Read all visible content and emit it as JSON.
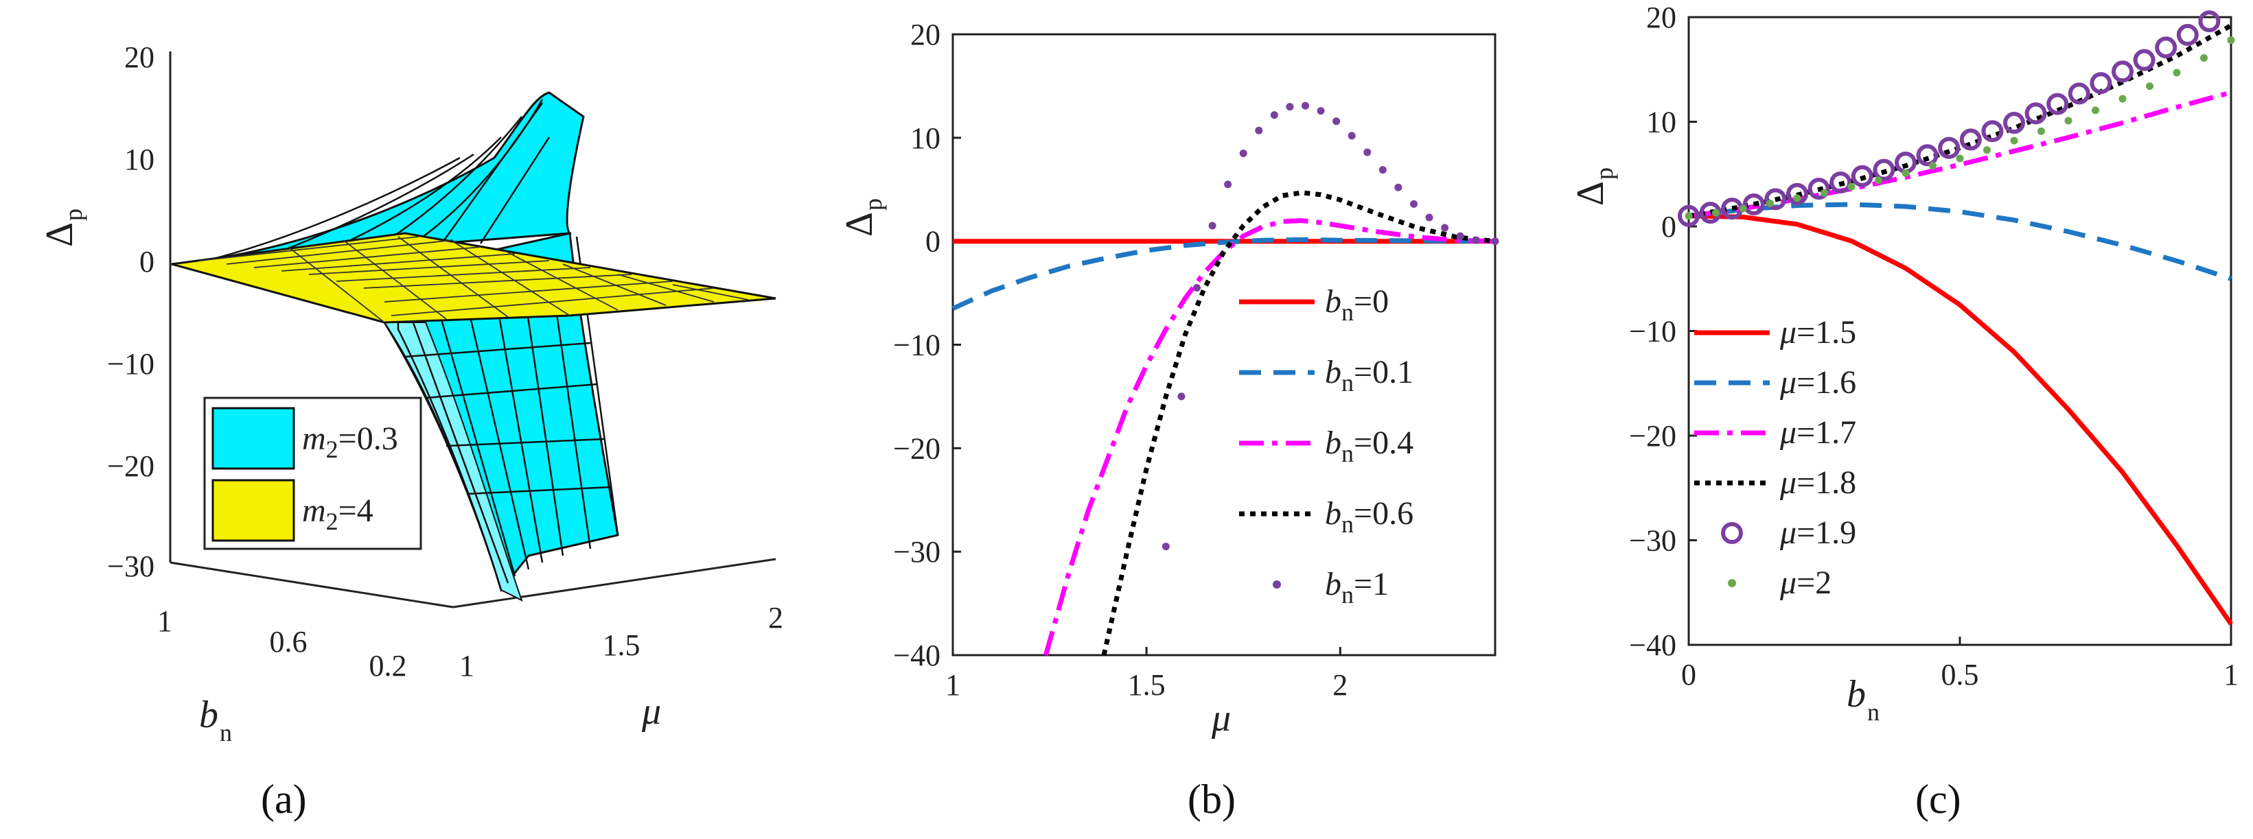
{
  "panels": [
    {
      "label": "(a)",
      "panel_label": "(a)",
      "legend_a": [
        {
          "name": "m2=0.3",
          "text_main": "m",
          "text_sub": "2",
          "text_rest": "=0.3",
          "color": "#00ffff"
        },
        {
          "name": "m2=4",
          "text_main": "m",
          "text_sub": "2",
          "text_rest": "=4",
          "color": "#ffff00"
        }
      ],
      "z_ticks": [
        "20",
        "10",
        "0",
        "−10",
        "−20",
        "−30"
      ],
      "bn_ticks": [
        "1",
        "0.6",
        "0.2"
      ],
      "mu_ticks": [
        "1",
        "1.5",
        "2"
      ],
      "zlabel": "Δ",
      "zlabel_sub": "p",
      "xlabel": "b",
      "xlabel_sub": "n",
      "ylabel": "μ"
    }
  ],
  "chart_data": [
    {
      "type": "surface",
      "title": "",
      "panel_label": "(a)",
      "zlabel": "Δp",
      "axes": {
        "b_n": [
          1,
          0.6,
          0.2
        ],
        "mu": [
          1,
          1.5,
          2
        ],
        "zlim": [
          -30,
          20
        ]
      },
      "series": [
        {
          "name": "m2=0.3",
          "color": "#00ffff"
        },
        {
          "name": "m2=4",
          "color": "#ffff00"
        }
      ]
    },
    {
      "type": "line",
      "panel_label": "(b)",
      "xlabel": "μ",
      "ylabel": "Δp",
      "xlim": [
        1,
        2.4
      ],
      "ylim": [
        -40,
        20
      ],
      "xticks": [
        1,
        1.5,
        2
      ],
      "yticks": [
        20,
        10,
        0,
        -10,
        -20,
        -30,
        -40
      ],
      "legend": "right",
      "series": [
        {
          "name": "bn=0",
          "label_main": "b",
          "label_sub": "n",
          "label_rest": "=0",
          "color": "#ff0000",
          "style": "solid",
          "x": [
            1,
            1.2,
            1.4,
            1.6,
            1.8,
            2.0,
            2.2,
            2.4
          ],
          "y": [
            0,
            0,
            0,
            0,
            0,
            0,
            0,
            0
          ]
        },
        {
          "name": "bn=0.1",
          "label_main": "b",
          "label_sub": "n",
          "label_rest": "=0.1",
          "color": "#1f77c4",
          "style": "dashed",
          "x": [
            1,
            1.1,
            1.2,
            1.3,
            1.4,
            1.5,
            1.6,
            1.7,
            1.8,
            1.9,
            2.0,
            2.2,
            2.4
          ],
          "y": [
            -6.5,
            -4.8,
            -3.5,
            -2.4,
            -1.6,
            -0.9,
            -0.4,
            -0.1,
            0.1,
            0.15,
            0.1,
            0.05,
            0
          ]
        },
        {
          "name": "bn=0.4",
          "label_main": "b",
          "label_sub": "n",
          "label_rest": "=0.4",
          "color": "#ff00ff",
          "style": "dashdot",
          "x": [
            1.24,
            1.3,
            1.35,
            1.4,
            1.45,
            1.5,
            1.55,
            1.6,
            1.65,
            1.7,
            1.75,
            1.8,
            1.85,
            1.9,
            1.95,
            2.0,
            2.1,
            2.2,
            2.3,
            2.4
          ],
          "y": [
            -40,
            -32,
            -26,
            -21,
            -16,
            -12,
            -8.5,
            -5.5,
            -3,
            -1,
            0.5,
            1.4,
            1.9,
            2.0,
            1.8,
            1.5,
            0.9,
            0.4,
            0.1,
            0
          ]
        },
        {
          "name": "bn=0.6",
          "label_main": "b",
          "label_sub": "n",
          "label_rest": "=0.6",
          "color": "#000000",
          "style": "dotted",
          "x": [
            1.39,
            1.45,
            1.5,
            1.55,
            1.6,
            1.65,
            1.7,
            1.75,
            1.8,
            1.85,
            1.9,
            1.95,
            2.0,
            2.1,
            2.2,
            2.3,
            2.4
          ],
          "y": [
            -40,
            -30,
            -22,
            -15,
            -9,
            -4.5,
            -1,
            1.5,
            3.3,
            4.4,
            4.7,
            4.5,
            4.0,
            2.6,
            1.3,
            0.4,
            0
          ]
        },
        {
          "name": "bn=1",
          "label_main": "b",
          "label_sub": "n",
          "label_rest": "=1",
          "color": "#7b3fa0",
          "style": "points",
          "x": [
            1.55,
            1.59,
            1.63,
            1.67,
            1.71,
            1.75,
            1.79,
            1.83,
            1.87,
            1.91,
            1.95,
            1.99,
            2.03,
            2.07,
            2.11,
            2.15,
            2.19,
            2.23,
            2.27,
            2.31,
            2.35,
            2.4
          ],
          "y": [
            -29.5,
            -15,
            -4.5,
            1.5,
            5.5,
            8.5,
            10.7,
            12.2,
            13.0,
            13.1,
            12.6,
            11.6,
            10.2,
            8.6,
            6.9,
            5.2,
            3.6,
            2.3,
            1.3,
            0.5,
            0.1,
            0
          ]
        }
      ]
    },
    {
      "type": "line",
      "panel_label": "(c)",
      "xlabel": "bn",
      "ylabel": "Δp",
      "xlim": [
        0,
        1
      ],
      "ylim": [
        -40,
        20
      ],
      "xticks": [
        0,
        0.5,
        1
      ],
      "yticks": [
        20,
        10,
        0,
        -10,
        -20,
        -30,
        -40
      ],
      "legend": "bottom-left",
      "series": [
        {
          "name": "μ=1.5",
          "label_main": "μ",
          "label_rest": "=1.5",
          "color": "#ff0000",
          "style": "solid",
          "x": [
            0,
            0.1,
            0.2,
            0.3,
            0.4,
            0.5,
            0.6,
            0.7,
            0.8,
            0.9,
            1.0
          ],
          "y": [
            1,
            0.9,
            0.2,
            -1.4,
            -4,
            -7.5,
            -12,
            -17.5,
            -23.5,
            -30.5,
            -38
          ]
        },
        {
          "name": "μ=1.6",
          "label_main": "μ",
          "label_rest": "=1.6",
          "color": "#1f77c4",
          "style": "dashed",
          "x": [
            0,
            0.1,
            0.2,
            0.3,
            0.4,
            0.5,
            0.6,
            0.7,
            0.8,
            0.9,
            1.0
          ],
          "y": [
            1,
            1.6,
            2.0,
            2.1,
            1.9,
            1.4,
            0.6,
            -0.5,
            -1.8,
            -3.3,
            -5
          ]
        },
        {
          "name": "μ=1.7",
          "label_main": "μ",
          "label_rest": "=1.7",
          "color": "#ff00ff",
          "style": "dashdot",
          "x": [
            0,
            0.1,
            0.2,
            0.3,
            0.4,
            0.5,
            0.6,
            0.7,
            0.8,
            0.9,
            1.0
          ],
          "y": [
            1,
            1.7,
            2.6,
            3.6,
            4.7,
            5.9,
            7.2,
            8.5,
            9.9,
            11.4,
            12.8
          ]
        },
        {
          "name": "μ=1.8",
          "label_main": "μ",
          "label_rest": "=1.8",
          "color": "#000000",
          "style": "dotted",
          "x": [
            0,
            0.1,
            0.2,
            0.3,
            0.4,
            0.5,
            0.6,
            0.7,
            0.8,
            0.9,
            1.0
          ],
          "y": [
            1,
            1.9,
            3.0,
            4.3,
            5.8,
            7.5,
            9.4,
            11.5,
            13.8,
            16.3,
            19.2
          ]
        },
        {
          "name": "μ=1.9",
          "label_main": "μ",
          "label_rest": "=1.9",
          "color": "#7b3fa0",
          "style": "circles",
          "x": [
            0,
            0.04,
            0.08,
            0.12,
            0.16,
            0.2,
            0.24,
            0.28,
            0.32,
            0.36,
            0.4,
            0.44,
            0.48,
            0.52,
            0.56,
            0.6,
            0.64,
            0.68,
            0.72,
            0.76,
            0.8,
            0.84,
            0.88,
            0.92,
            0.96
          ],
          "y": [
            1,
            1.3,
            1.7,
            2.1,
            2.6,
            3.1,
            3.6,
            4.2,
            4.8,
            5.4,
            6.1,
            6.8,
            7.5,
            8.3,
            9.1,
            9.9,
            10.8,
            11.7,
            12.7,
            13.7,
            14.8,
            15.9,
            17.1,
            18.3,
            19.6
          ]
        },
        {
          "name": "μ=2",
          "label_main": "μ",
          "label_rest": "=2",
          "color": "#6aa84f",
          "style": "points",
          "x": [
            0,
            0.05,
            0.1,
            0.15,
            0.2,
            0.25,
            0.3,
            0.35,
            0.4,
            0.45,
            0.5,
            0.55,
            0.6,
            0.65,
            0.7,
            0.75,
            0.8,
            0.85,
            0.9,
            0.95,
            1.0
          ],
          "y": [
            1,
            1.3,
            1.7,
            2.2,
            2.7,
            3.2,
            3.8,
            4.4,
            5.1,
            5.8,
            6.5,
            7.3,
            8.2,
            9.1,
            10.1,
            11.1,
            12.2,
            13.4,
            14.7,
            16.1,
            17.8
          ]
        }
      ]
    }
  ]
}
